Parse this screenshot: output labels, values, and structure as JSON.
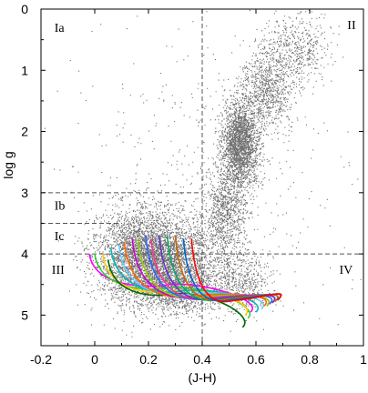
{
  "chart_data": {
    "type": "scatter",
    "xlabel": "(J-H)",
    "ylabel": "log g",
    "xlim": [
      -0.2,
      1.0
    ],
    "ylim": [
      5.5,
      0
    ],
    "x_ticks": [
      -0.2,
      0,
      0.2,
      0.4,
      0.6,
      0.8,
      1
    ],
    "x_tick_labels": [
      "-0.2",
      "0",
      "0.2",
      "0.4",
      "0.6",
      "0.8",
      "1"
    ],
    "y_ticks": [
      0,
      1,
      2,
      3,
      4,
      5
    ],
    "y_tick_labels": [
      "0",
      "1",
      "2",
      "3",
      "4",
      "5"
    ],
    "point_color": "#707070",
    "reference_lines": [
      {
        "orientation": "vertical",
        "x": 0.4,
        "y_from": 0,
        "y_to": 5.5
      },
      {
        "orientation": "horizontal",
        "y": 3.0,
        "x_from": -0.2,
        "x_to": 0.4
      },
      {
        "orientation": "horizontal",
        "y": 3.5,
        "x_from": -0.2,
        "x_to": 0.1
      },
      {
        "orientation": "horizontal",
        "y": 4.0,
        "x_from": -0.2,
        "x_to": 1.0
      }
    ],
    "region_labels": [
      {
        "text": "Ia",
        "x": -0.15,
        "y": 0.3
      },
      {
        "text": "II",
        "x": 0.94,
        "y": 0.25
      },
      {
        "text": "Ib",
        "x": -0.15,
        "y": 3.2
      },
      {
        "text": "Ic",
        "x": -0.15,
        "y": 3.7
      },
      {
        "text": "III",
        "x": -0.16,
        "y": 4.25
      },
      {
        "text": "IV",
        "x": 0.91,
        "y": 4.25
      }
    ],
    "scatter_groups": [
      {
        "cx": 0.23,
        "cy": 4.05,
        "sx": 0.11,
        "sy": 0.38,
        "n": 3800
      },
      {
        "cx": 0.3,
        "cy": 4.55,
        "sx": 0.1,
        "sy": 0.22,
        "n": 1300
      },
      {
        "cx": 0.14,
        "cy": 3.85,
        "sx": 0.07,
        "sy": 0.35,
        "n": 700
      },
      {
        "cx": 0.54,
        "cy": 2.2,
        "sx": 0.035,
        "sy": 0.35,
        "n": 2300
      },
      {
        "cx": 0.49,
        "cy": 3.3,
        "sx": 0.04,
        "sy": 0.38,
        "n": 900
      },
      {
        "cx": 0.64,
        "cy": 1.3,
        "sx": 0.05,
        "sy": 0.35,
        "n": 900
      },
      {
        "cx": 0.75,
        "cy": 0.65,
        "sx": 0.06,
        "sy": 0.3,
        "n": 500
      },
      {
        "cx": 0.55,
        "cy": 4.45,
        "sx": 0.05,
        "sy": 0.25,
        "n": 500
      },
      {
        "cx": 0.4,
        "cy": 2.8,
        "sx": 0.25,
        "sy": 1.3,
        "n": 500
      }
    ],
    "series": [
      {
        "color": "#ff00ff",
        "knee": [
          -0.02,
          4.0
        ],
        "foot": [
          0.58,
          4.95
        ],
        "bottom": 4.5
      },
      {
        "color": "#33cc33",
        "knee": [
          0.0,
          4.0
        ],
        "foot": [
          0.57,
          5.05
        ],
        "bottom": 4.55
      },
      {
        "color": "#ffcc00",
        "knee": [
          0.03,
          4.0
        ],
        "foot": [
          0.56,
          5.0
        ],
        "bottom": 4.6
      },
      {
        "color": "#00bbbb",
        "knee": [
          0.06,
          3.9
        ],
        "foot": [
          0.6,
          4.95
        ],
        "bottom": 4.6
      },
      {
        "color": "#006600",
        "knee": [
          0.05,
          4.1
        ],
        "foot": [
          0.55,
          5.2
        ],
        "bottom": 4.65
      },
      {
        "color": "#66ccff",
        "knee": [
          0.09,
          3.85
        ],
        "foot": [
          0.62,
          4.9
        ],
        "bottom": 4.65
      },
      {
        "color": "#ff6600",
        "knee": [
          0.11,
          3.8
        ],
        "foot": [
          0.63,
          4.85
        ],
        "bottom": 4.68
      },
      {
        "color": "#cc00cc",
        "knee": [
          0.14,
          3.75
        ],
        "foot": [
          0.64,
          4.85
        ],
        "bottom": 4.7
      },
      {
        "color": "#99cc00",
        "knee": [
          0.16,
          3.75
        ],
        "foot": [
          0.64,
          4.85
        ],
        "bottom": 4.7
      },
      {
        "color": "#3366ff",
        "knee": [
          0.19,
          3.7
        ],
        "foot": [
          0.65,
          4.82
        ],
        "bottom": 4.72
      },
      {
        "color": "#ff3399",
        "knee": [
          0.21,
          3.75
        ],
        "foot": [
          0.66,
          4.8
        ],
        "bottom": 4.72
      },
      {
        "color": "#6633cc",
        "knee": [
          0.24,
          3.7
        ],
        "foot": [
          0.66,
          4.8
        ],
        "bottom": 4.73
      },
      {
        "color": "#00aa66",
        "knee": [
          0.27,
          3.7
        ],
        "foot": [
          0.67,
          4.78
        ],
        "bottom": 4.74
      },
      {
        "color": "#cc6600",
        "knee": [
          0.3,
          3.7
        ],
        "foot": [
          0.67,
          4.78
        ],
        "bottom": 4.74
      },
      {
        "color": "#0066cc",
        "knee": [
          0.33,
          3.75
        ],
        "foot": [
          0.68,
          4.76
        ],
        "bottom": 4.75
      },
      {
        "color": "#ff0000",
        "knee": [
          0.36,
          3.75
        ],
        "foot": [
          0.68,
          4.75
        ],
        "bottom": 4.76
      }
    ]
  }
}
